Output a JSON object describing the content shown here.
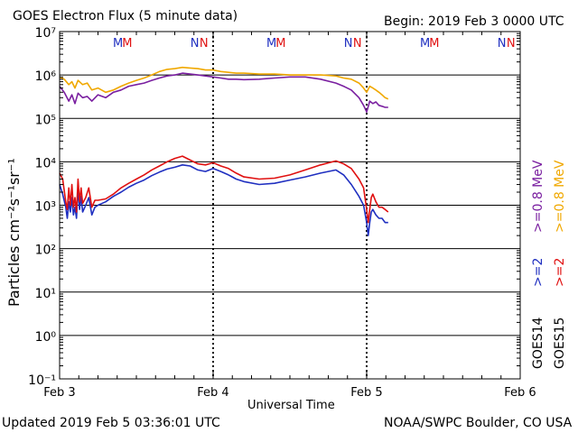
{
  "header": {
    "title": "GOES Electron Flux (5 minute data)",
    "begin": "Begin: 2019 Feb 3 0000 UTC"
  },
  "footer": {
    "updated": "Updated 2019 Feb  5 03:36:01 UTC",
    "credit": "NOAA/SWPC Boulder, CO USA"
  },
  "side_legend": {
    "goes14_label": "GOES14",
    "goes15_label": "GOES15",
    "goes14_ge2": ">=2",
    "goes15_ge2": ">=2",
    "goes14_ge08": ">=0.8 MeV",
    "goes15_ge08": ">=0.8 MeV",
    "color_goes14_ge2": "#1f2fc0",
    "color_goes15_ge2": "#e01010",
    "color_goes14_ge08": "#7a1fa0",
    "color_goes15_ge08": "#f0a800"
  },
  "chart_data": {
    "type": "line",
    "title": "GOES Electron Flux (5 minute data)",
    "xlabel": "Universal Time",
    "ylabel": "Particles cm⁻²s⁻¹sr⁻¹",
    "yscale": "log",
    "ylim_exp": [
      -1,
      7
    ],
    "xlim_days": [
      0,
      3
    ],
    "x_ticks": [
      {
        "day": 0,
        "label": "Feb 3"
      },
      {
        "day": 1,
        "label": "Feb 4"
      },
      {
        "day": 2,
        "label": "Feb 5"
      },
      {
        "day": 3,
        "label": "Feb 6"
      }
    ],
    "y_ticks": [
      {
        "exp": 7,
        "label": "10⁷"
      },
      {
        "exp": 6,
        "label": "10⁶"
      },
      {
        "exp": 5,
        "label": "10⁵"
      },
      {
        "exp": 4,
        "label": "10⁴"
      },
      {
        "exp": 3,
        "label": "10³"
      },
      {
        "exp": 2,
        "label": "10²"
      },
      {
        "exp": 1,
        "label": "10¹"
      },
      {
        "exp": 0,
        "label": "10⁰"
      },
      {
        "exp": -1,
        "label": "10⁻¹"
      }
    ],
    "alert_threshold": 1000,
    "markers": [
      {
        "day": 0.38,
        "text": "M",
        "color": "#1f2fc0"
      },
      {
        "day": 0.44,
        "text": "M",
        "color": "#e01010"
      },
      {
        "day": 0.88,
        "text": "N",
        "color": "#1f2fc0"
      },
      {
        "day": 0.94,
        "text": "N",
        "color": "#e01010"
      },
      {
        "day": 1.38,
        "text": "M",
        "color": "#1f2fc0"
      },
      {
        "day": 1.44,
        "text": "M",
        "color": "#e01010"
      },
      {
        "day": 1.88,
        "text": "N",
        "color": "#1f2fc0"
      },
      {
        "day": 1.94,
        "text": "N",
        "color": "#e01010"
      },
      {
        "day": 2.38,
        "text": "M",
        "color": "#1f2fc0"
      },
      {
        "day": 2.44,
        "text": "M",
        "color": "#e01010"
      },
      {
        "day": 2.88,
        "text": "N",
        "color": "#1f2fc0"
      },
      {
        "day": 2.94,
        "text": "N",
        "color": "#e01010"
      }
    ],
    "series": [
      {
        "name": "GOES14 >=0.8 MeV",
        "color": "#7a1fa0",
        "x": [
          0.0,
          0.03,
          0.06,
          0.08,
          0.1,
          0.12,
          0.15,
          0.18,
          0.21,
          0.25,
          0.3,
          0.35,
          0.4,
          0.45,
          0.5,
          0.55,
          0.6,
          0.65,
          0.7,
          0.75,
          0.8,
          0.85,
          0.9,
          0.95,
          1.0,
          1.05,
          1.1,
          1.15,
          1.2,
          1.3,
          1.4,
          1.5,
          1.6,
          1.7,
          1.8,
          1.85,
          1.9,
          1.95,
          1.98,
          2.0,
          2.02,
          2.04,
          2.06,
          2.08,
          2.1,
          2.12,
          2.14
        ],
        "y": [
          550000.0,
          400000.0,
          250000.0,
          350000.0,
          220000.0,
          380000.0,
          300000.0,
          320000.0,
          250000.0,
          350000.0,
          300000.0,
          400000.0,
          450000.0,
          550000.0,
          600000.0,
          650000.0,
          750000.0,
          850000.0,
          950000.0,
          1000000.0,
          1100000.0,
          1050000.0,
          1000000.0,
          950000.0,
          900000.0,
          850000.0,
          800000.0,
          800000.0,
          780000.0,
          800000.0,
          850000.0,
          900000.0,
          900000.0,
          800000.0,
          650000.0,
          550000.0,
          450000.0,
          300000.0,
          200000.0,
          140000.0,
          250000.0,
          220000.0,
          240000.0,
          200000.0,
          190000.0,
          180000.0,
          180000.0
        ]
      },
      {
        "name": "GOES15 >=0.8 MeV",
        "color": "#f0a800",
        "x": [
          0.0,
          0.03,
          0.06,
          0.08,
          0.1,
          0.12,
          0.15,
          0.18,
          0.21,
          0.25,
          0.3,
          0.35,
          0.4,
          0.45,
          0.5,
          0.55,
          0.6,
          0.65,
          0.7,
          0.75,
          0.8,
          0.85,
          0.9,
          0.95,
          1.0,
          1.05,
          1.1,
          1.15,
          1.2,
          1.3,
          1.4,
          1.5,
          1.6,
          1.7,
          1.8,
          1.85,
          1.9,
          1.95,
          1.98,
          2.0,
          2.02,
          2.04,
          2.06,
          2.08,
          2.1,
          2.12,
          2.14
        ],
        "y": [
          900000.0,
          800000.0,
          600000.0,
          700000.0,
          500000.0,
          750000.0,
          600000.0,
          650000.0,
          450000.0,
          500000.0,
          400000.0,
          450000.0,
          550000.0,
          650000.0,
          750000.0,
          850000.0,
          1000000.0,
          1200000.0,
          1350000.0,
          1400000.0,
          1500000.0,
          1450000.0,
          1400000.0,
          1300000.0,
          1300000.0,
          1200000.0,
          1150000.0,
          1100000.0,
          1100000.0,
          1050000.0,
          1050000.0,
          1000000.0,
          1000000.0,
          1000000.0,
          950000.0,
          850000.0,
          800000.0,
          650000.0,
          500000.0,
          400000.0,
          550000.0,
          500000.0,
          450000.0,
          400000.0,
          350000.0,
          300000.0,
          280000.0
        ]
      },
      {
        "name": "GOES14 >=2 MeV",
        "color": "#1f2fc0",
        "x": [
          0.0,
          0.02,
          0.04,
          0.05,
          0.06,
          0.07,
          0.08,
          0.09,
          0.1,
          0.11,
          0.12,
          0.13,
          0.14,
          0.15,
          0.17,
          0.19,
          0.21,
          0.23,
          0.25,
          0.3,
          0.35,
          0.4,
          0.45,
          0.5,
          0.55,
          0.6,
          0.65,
          0.7,
          0.75,
          0.8,
          0.85,
          0.9,
          0.95,
          1.0,
          1.05,
          1.1,
          1.15,
          1.2,
          1.3,
          1.4,
          1.5,
          1.6,
          1.7,
          1.8,
          1.85,
          1.9,
          1.95,
          1.98,
          2.0,
          2.01,
          2.02,
          2.03,
          2.04,
          2.06,
          2.08,
          2.1,
          2.12,
          2.14
        ],
        "y": [
          3000,
          1800,
          900,
          500,
          1200,
          700,
          1500,
          600,
          900,
          500,
          2500,
          800,
          1600,
          700,
          1000,
          1500,
          600,
          900,
          1000,
          1200,
          1600,
          2000,
          2600,
          3200,
          3800,
          4800,
          5800,
          6800,
          7500,
          8500,
          8000,
          6500,
          6000,
          7000,
          6000,
          5000,
          4000,
          3500,
          3000,
          3200,
          3800,
          4500,
          5500,
          6500,
          5000,
          3000,
          1600,
          1000,
          400,
          200,
          400,
          700,
          800,
          600,
          500,
          500,
          400,
          400
        ]
      },
      {
        "name": "GOES15 >=2 MeV",
        "color": "#e01010",
        "x": [
          0.0,
          0.02,
          0.04,
          0.05,
          0.06,
          0.07,
          0.08,
          0.09,
          0.1,
          0.11,
          0.12,
          0.13,
          0.14,
          0.15,
          0.17,
          0.19,
          0.21,
          0.23,
          0.25,
          0.3,
          0.35,
          0.4,
          0.45,
          0.5,
          0.55,
          0.6,
          0.65,
          0.7,
          0.75,
          0.8,
          0.85,
          0.9,
          0.95,
          1.0,
          1.05,
          1.1,
          1.15,
          1.2,
          1.3,
          1.4,
          1.5,
          1.6,
          1.7,
          1.8,
          1.85,
          1.9,
          1.95,
          1.98,
          2.0,
          2.01,
          2.02,
          2.03,
          2.04,
          2.06,
          2.08,
          2.1,
          2.12,
          2.14
        ],
        "y": [
          5500,
          4000,
          1200,
          800,
          2500,
          1000,
          3000,
          900,
          1500,
          700,
          4000,
          1200,
          2500,
          1100,
          1500,
          2500,
          900,
          1300,
          1300,
          1400,
          1800,
          2500,
          3200,
          4000,
          5000,
          6500,
          8000,
          10000,
          12000,
          13500,
          11000,
          9000,
          8500,
          9500,
          8000,
          7000,
          5500,
          4500,
          4000,
          4200,
          5000,
          6500,
          8500,
          10500,
          9000,
          7000,
          4000,
          2500,
          800,
          400,
          800,
          1500,
          1800,
          1200,
          900,
          900,
          800,
          700
        ]
      }
    ]
  }
}
